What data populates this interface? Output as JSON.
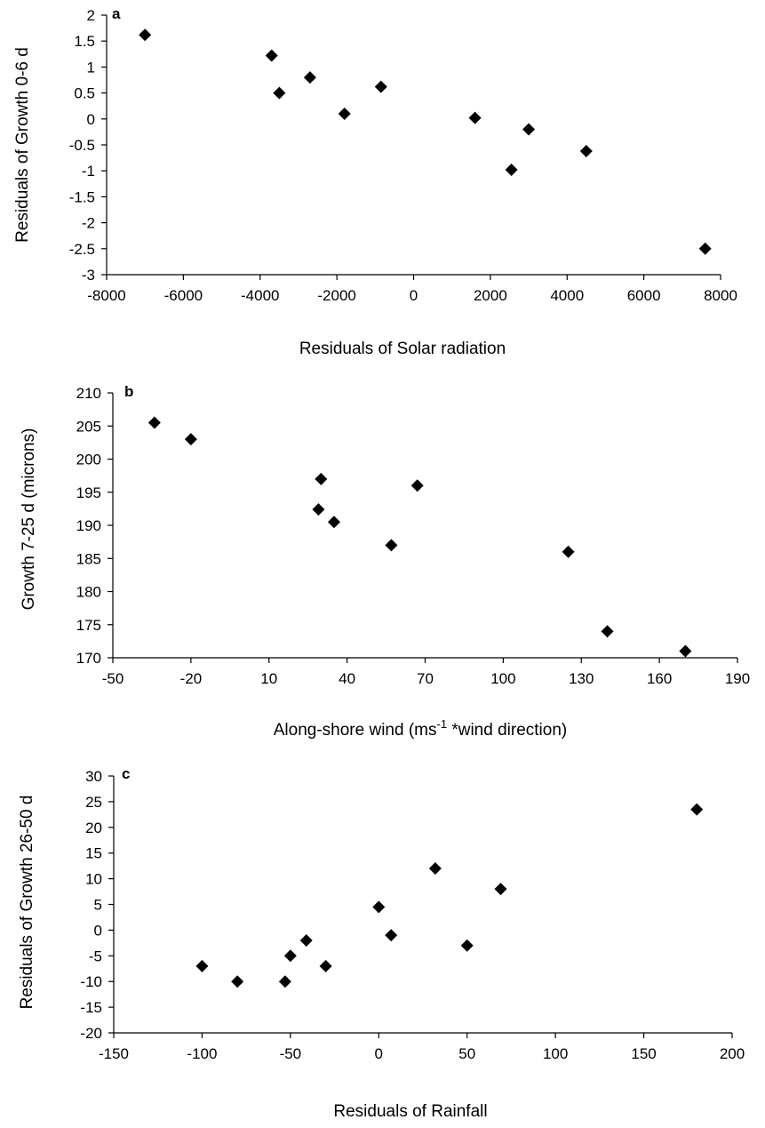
{
  "chart_data": [
    {
      "type": "scatter",
      "panel_label": "a",
      "xlabel": "Residuals of Solar radiation",
      "ylabel": "Residuals of Growth 0-6 d",
      "xlim": [
        -8000,
        8000
      ],
      "ylim": [
        -3,
        2
      ],
      "xticks": [
        -8000,
        -6000,
        -4000,
        -2000,
        0,
        2000,
        4000,
        6000,
        8000
      ],
      "yticks": [
        2,
        1.5,
        1,
        0.5,
        0,
        -0.5,
        -1,
        -1.5,
        -2,
        -2.5,
        -3
      ],
      "marker": "diamond",
      "grid": false,
      "points": [
        {
          "x": -7000,
          "y": 1.62
        },
        {
          "x": -3700,
          "y": 1.22
        },
        {
          "x": -3500,
          "y": 0.5
        },
        {
          "x": -2700,
          "y": 0.8
        },
        {
          "x": -1800,
          "y": 0.1
        },
        {
          "x": -850,
          "y": 0.62
        },
        {
          "x": 1600,
          "y": 0.02
        },
        {
          "x": 2550,
          "y": -0.98
        },
        {
          "x": 3000,
          "y": -0.2
        },
        {
          "x": 4500,
          "y": -0.62
        },
        {
          "x": 7600,
          "y": -2.5
        }
      ]
    },
    {
      "type": "scatter",
      "panel_label": "b",
      "xlabel_main": "Along-shore wind (ms",
      "xlabel_sup": "-1",
      "xlabel_tail": " *wind direction)",
      "ylabel": "Growth 7-25 d (microns)",
      "xlim": [
        -50,
        190
      ],
      "ylim": [
        170,
        210
      ],
      "xticks": [
        -50,
        -20,
        10,
        40,
        70,
        100,
        130,
        160,
        190
      ],
      "yticks": [
        210,
        205,
        200,
        195,
        190,
        185,
        180,
        175,
        170
      ],
      "marker": "diamond",
      "grid": false,
      "points": [
        {
          "x": -34,
          "y": 205.5
        },
        {
          "x": -20,
          "y": 203
        },
        {
          "x": 30,
          "y": 197
        },
        {
          "x": 29,
          "y": 192.4
        },
        {
          "x": 35,
          "y": 190.5
        },
        {
          "x": 57,
          "y": 187
        },
        {
          "x": 67,
          "y": 196
        },
        {
          "x": 125,
          "y": 186
        },
        {
          "x": 140,
          "y": 174
        },
        {
          "x": 170,
          "y": 171
        }
      ]
    },
    {
      "type": "scatter",
      "panel_label": "c",
      "xlabel": "Residuals of Rainfall",
      "ylabel": "Residuals of Growth 26-50 d",
      "xlim": [
        -150,
        200
      ],
      "ylim": [
        -20,
        30
      ],
      "xticks": [
        -150,
        -100,
        -50,
        0,
        50,
        100,
        150,
        200
      ],
      "yticks": [
        30,
        25,
        20,
        15,
        10,
        5,
        0,
        -5,
        -10,
        -15,
        -20
      ],
      "marker": "diamond",
      "grid": false,
      "points": [
        {
          "x": -100,
          "y": -7
        },
        {
          "x": -80,
          "y": -10
        },
        {
          "x": -53,
          "y": -10
        },
        {
          "x": -50,
          "y": -5
        },
        {
          "x": -41,
          "y": -2
        },
        {
          "x": -30,
          "y": -7
        },
        {
          "x": 0,
          "y": 4.5
        },
        {
          "x": 7,
          "y": -1
        },
        {
          "x": 32,
          "y": 12
        },
        {
          "x": 50,
          "y": -3
        },
        {
          "x": 69,
          "y": 8
        },
        {
          "x": 180,
          "y": 23.5
        }
      ]
    }
  ]
}
